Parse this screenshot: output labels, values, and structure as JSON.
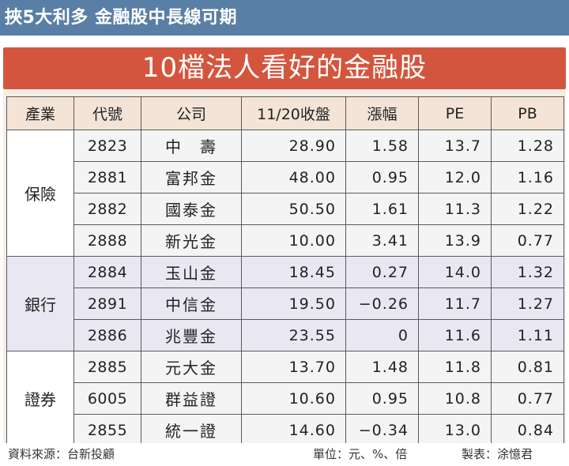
{
  "headline": "挾5大利多 金融股中長線可期",
  "title": "10檔法人看好的金融股",
  "columns": [
    "產業",
    "代號",
    "公司",
    "11/20收盤",
    "漲幅",
    "PE",
    "PB"
  ],
  "groups": [
    {
      "name": "保險",
      "rows": [
        {
          "code": "2823",
          "company": "中　壽",
          "close": "28.90",
          "change": "1.58",
          "pe": "13.7",
          "pb": "1.28"
        },
        {
          "code": "2881",
          "company": "富邦金",
          "close": "48.00",
          "change": "0.95",
          "pe": "12.0",
          "pb": "1.16"
        },
        {
          "code": "2882",
          "company": "國泰金",
          "close": "50.50",
          "change": "1.61",
          "pe": "11.3",
          "pb": "1.22"
        },
        {
          "code": "2888",
          "company": "新光金",
          "close": "10.00",
          "change": "3.41",
          "pe": "13.9",
          "pb": "0.77"
        }
      ]
    },
    {
      "name": "銀行",
      "rows": [
        {
          "code": "2884",
          "company": "玉山金",
          "close": "18.45",
          "change": "0.27",
          "pe": "14.0",
          "pb": "1.32"
        },
        {
          "code": "2891",
          "company": "中信金",
          "close": "19.50",
          "change": "−0.26",
          "pe": "11.7",
          "pb": "1.27"
        },
        {
          "code": "2886",
          "company": "兆豐金",
          "close": "23.55",
          "change": "0",
          "pe": "11.6",
          "pb": "1.11"
        }
      ]
    },
    {
      "name": "證券",
      "rows": [
        {
          "code": "2885",
          "company": "元大金",
          "close": "13.70",
          "change": "1.48",
          "pe": "11.8",
          "pb": "0.81"
        },
        {
          "code": "6005",
          "company": "群益證",
          "close": "10.60",
          "change": "0.95",
          "pe": "10.8",
          "pb": "0.77"
        },
        {
          "code": "2855",
          "company": "統一證",
          "close": "14.60",
          "change": "−0.34",
          "pe": "13.0",
          "pb": "0.84"
        }
      ]
    }
  ],
  "footer": {
    "source": "資料來源：台新投顧",
    "unit": "單位：元、%、倍",
    "maker": "製表：涂憶君"
  }
}
